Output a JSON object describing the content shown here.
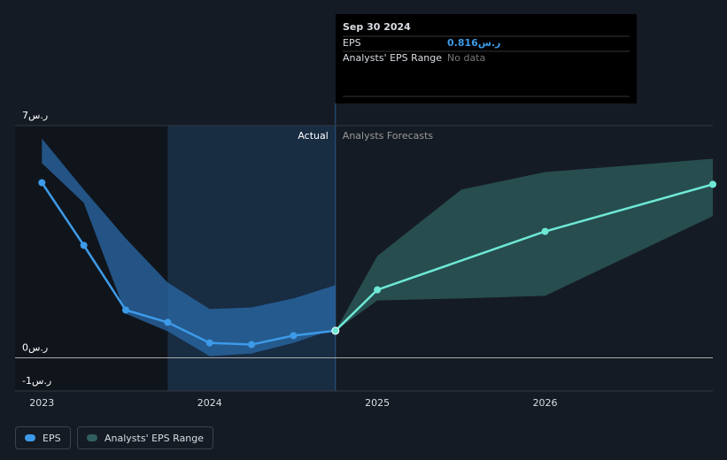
{
  "chart_data": {
    "type": "line",
    "xlim": [
      2022.84,
      2027
    ],
    "xticks": [
      2023,
      2024,
      2025,
      2026
    ],
    "ylim": [
      -1,
      7
    ],
    "yticks": [
      {
        "value": 7,
        "label": "7ر.س"
      },
      {
        "value": 0,
        "label": "0ر.س"
      },
      {
        "value": -1,
        "label": "-1ر.س"
      }
    ],
    "regions": {
      "actual_label": "Actual",
      "forecast_label": "Analysts Forecasts",
      "forecast_start": 2024.75,
      "highlight_xlim": [
        2023.75,
        2024.75
      ]
    },
    "series": [
      {
        "name": "EPS",
        "color": "#3d9ae8",
        "x": [
          2023,
          2023.25,
          2023.5,
          2023.75,
          2024,
          2024.25,
          2024.5,
          2024.75
        ],
        "values": [
          5.28,
          3.39,
          1.44,
          1.07,
          0.45,
          0.4,
          0.67,
          0.816
        ]
      },
      {
        "color": "#6ee8d4",
        "x": [
          2024.75,
          2025,
          2026,
          2027
        ],
        "values": [
          0.816,
          2.05,
          3.81,
          5.23
        ]
      }
    ],
    "ranges": [
      {
        "color": "#2a6aa8",
        "x": [
          2023,
          2023.25,
          2023.5,
          2023.75,
          2024,
          2024.25,
          2024.5,
          2024.75
        ],
        "high": [
          6.61,
          5.07,
          3.6,
          2.27,
          1.47,
          1.52,
          1.79,
          2.19
        ],
        "low": [
          5.87,
          4.67,
          1.33,
          0.8,
          0.05,
          0.13,
          0.45,
          0.88
        ]
      },
      {
        "name": "Analysts' EPS Range",
        "color": "#2e5f5e",
        "x": [
          2024.75,
          2025,
          2025.5,
          2026,
          2027
        ],
        "high": [
          0.816,
          3.07,
          5.07,
          5.6,
          6.0
        ],
        "low": [
          0.816,
          1.73,
          1.79,
          1.87,
          4.27
        ]
      }
    ],
    "tooltip": {
      "date": "Sep 30 2024",
      "rows": [
        {
          "label": "EPS",
          "value": 0.816,
          "value_label": "0.816ر.س"
        },
        {
          "label": "Analysts' EPS Range",
          "text": "No data"
        }
      ]
    }
  }
}
